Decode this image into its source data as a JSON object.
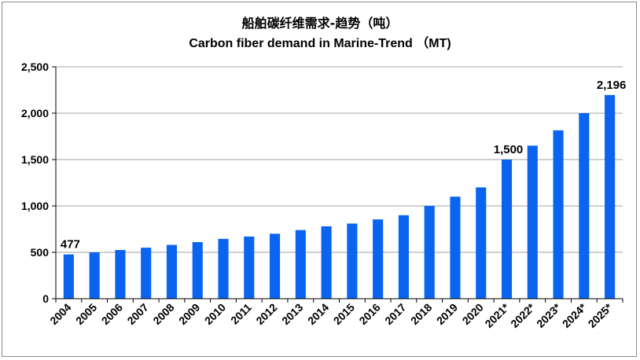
{
  "chart_data": {
    "type": "bar",
    "title": "船舶碳纤维需求-趋势（吨）",
    "subtitle": "Carbon fiber demand in Marine-Trend （MT)",
    "categories": [
      "2004",
      "2005",
      "2006",
      "2007",
      "2008",
      "2009",
      "2010",
      "2011",
      "2012",
      "2013",
      "2014",
      "2015",
      "2016",
      "2017",
      "2018",
      "2019",
      "2020",
      "2021*",
      "2022*",
      "2023*",
      "2024*",
      "2025*"
    ],
    "values": [
      477,
      500,
      525,
      550,
      580,
      610,
      645,
      670,
      700,
      740,
      780,
      810,
      855,
      900,
      1000,
      1100,
      1200,
      1500,
      1650,
      1815,
      2000,
      2196
    ],
    "data_labels": [
      {
        "category": "2004",
        "text": "477"
      },
      {
        "category": "2021*",
        "text": "1,500"
      },
      {
        "category": "2025*",
        "text": "2,196"
      }
    ],
    "ylim": [
      0,
      2500
    ],
    "y_ticks": [
      0,
      500,
      1000,
      1500,
      2000,
      2500
    ],
    "y_tick_labels": [
      "0",
      "500",
      "1,000",
      "1,500",
      "2,000",
      "2,500"
    ],
    "xlabel": "",
    "ylabel": "",
    "grid": true,
    "bar_color": "#0a64f0",
    "grid_color": "#a0a0a0"
  }
}
